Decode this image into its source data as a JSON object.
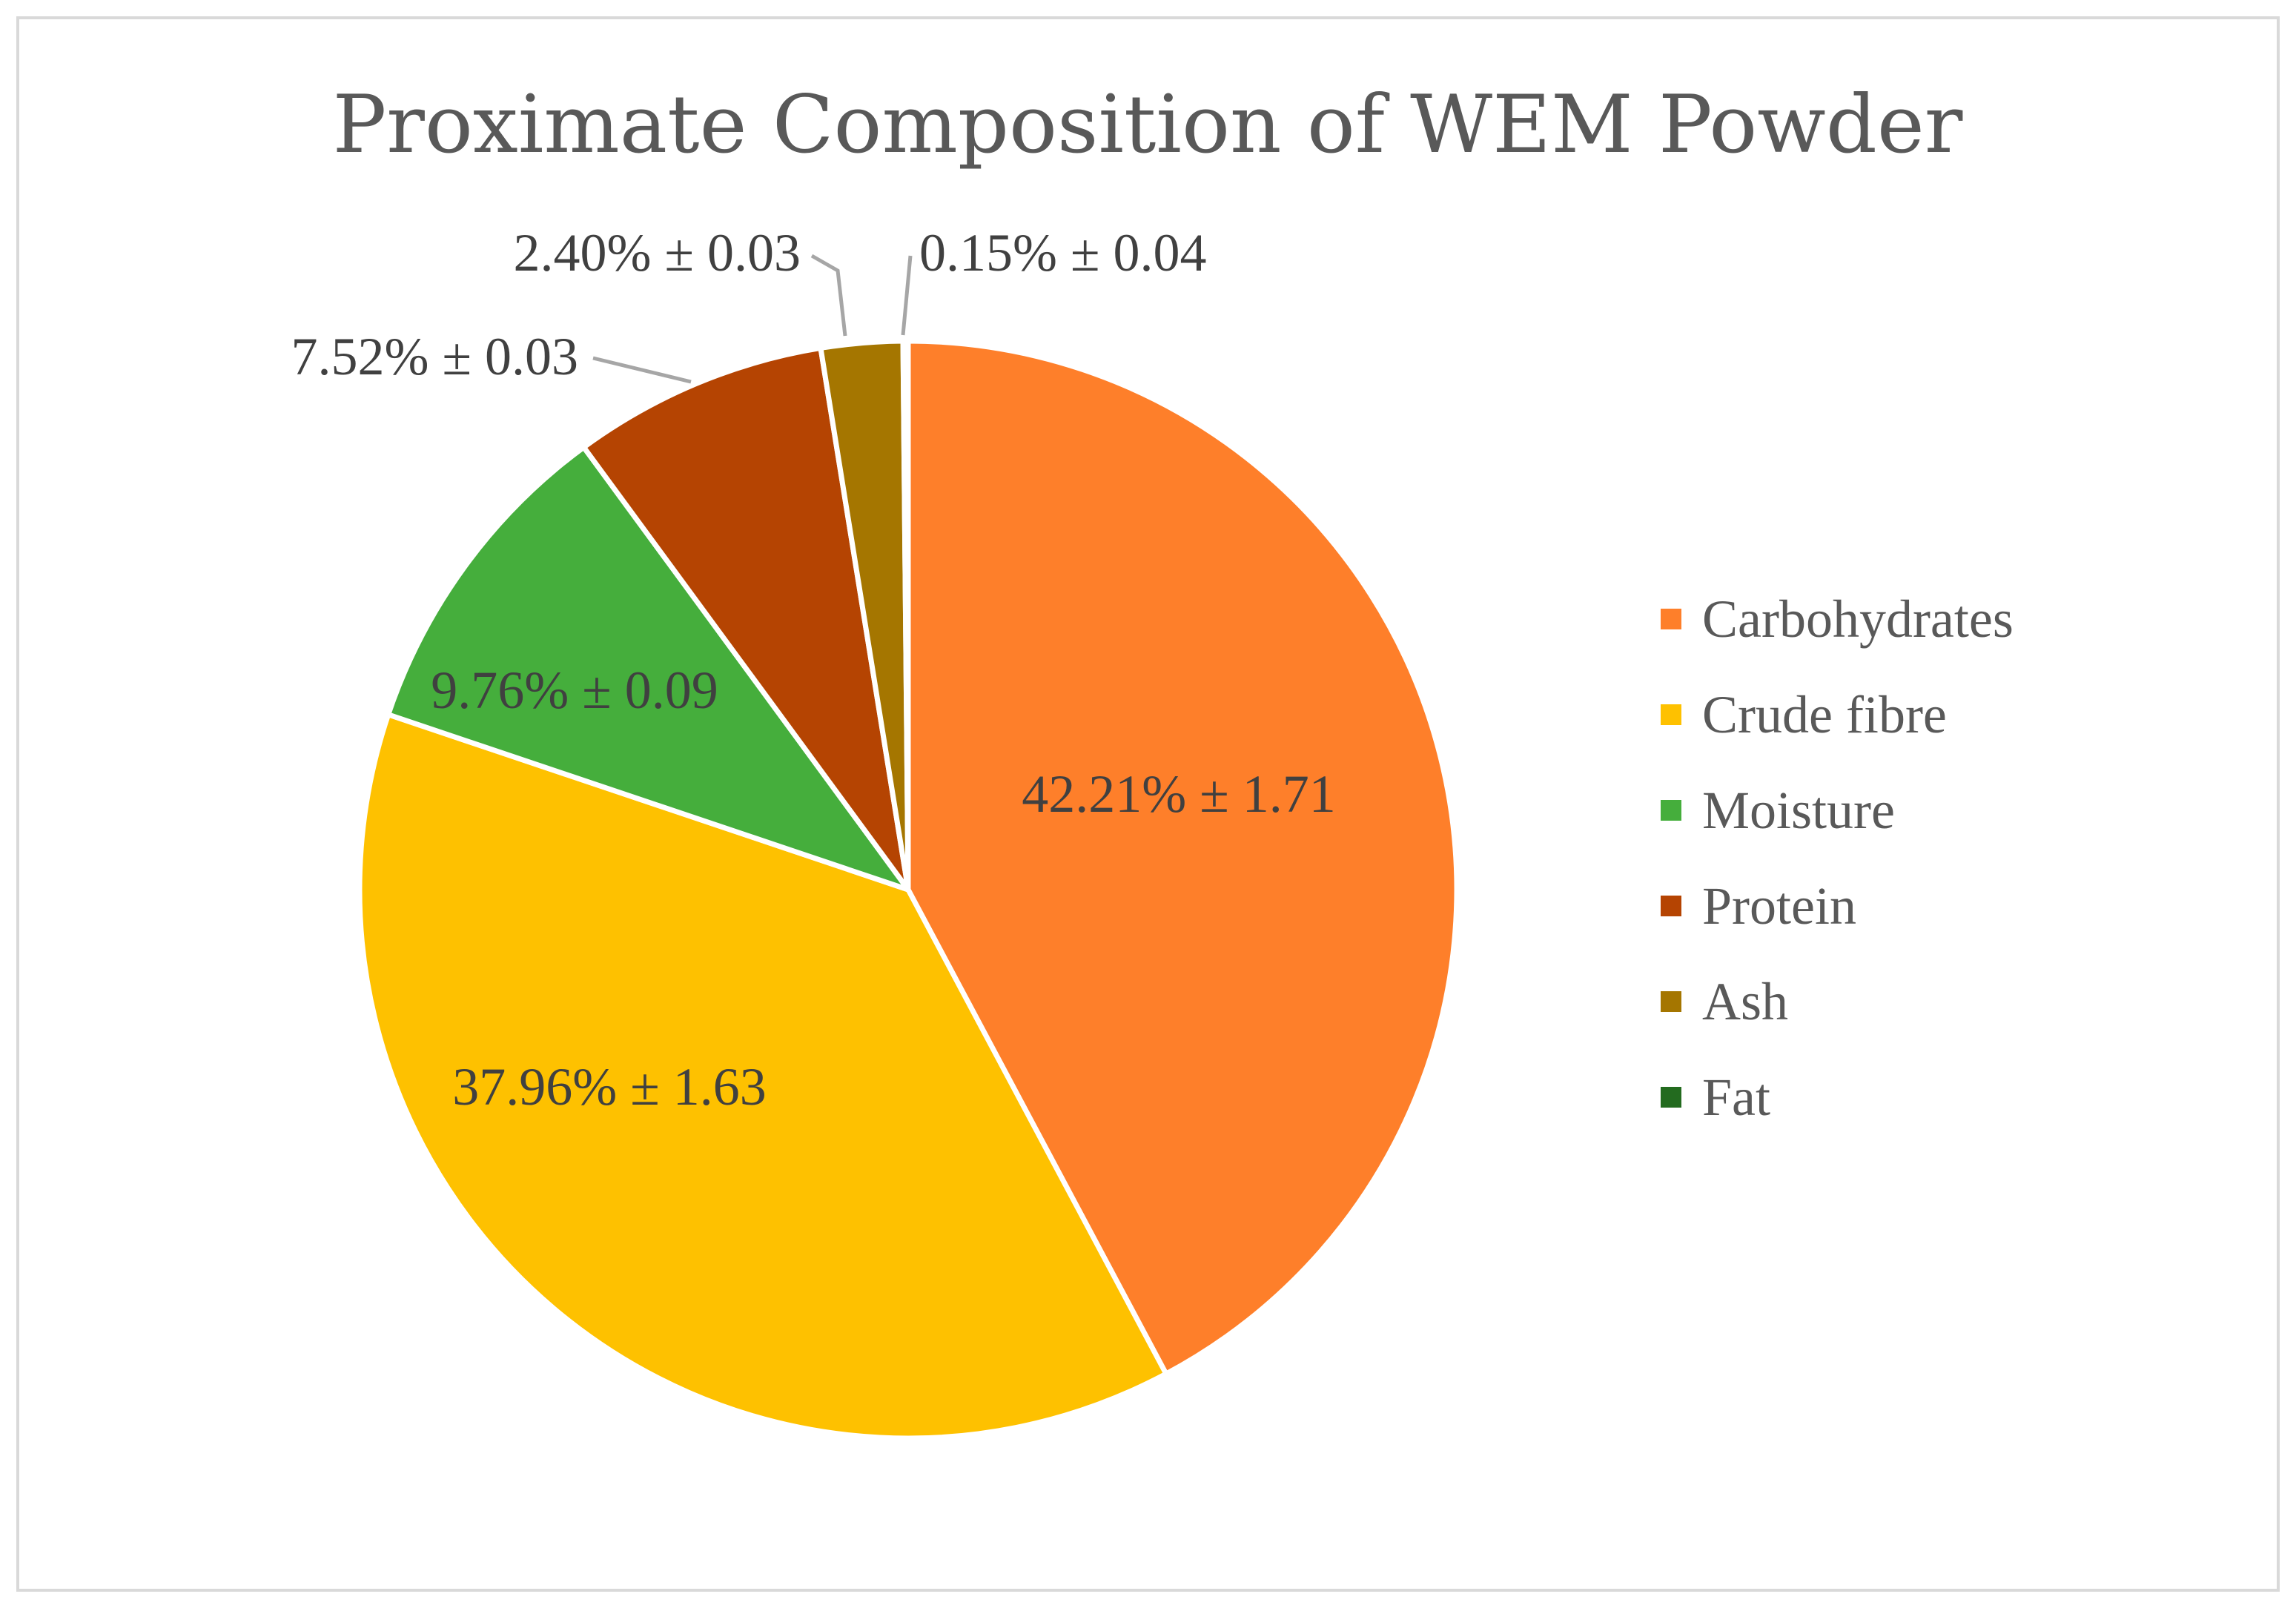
{
  "chart_data": {
    "type": "pie",
    "title": "Proximate Composition of WEM Powder",
    "categories": [
      "Carbohydrates",
      "Crude fibre",
      "Moisture",
      "Protein",
      "Ash",
      "Fat"
    ],
    "values": [
      42.21,
      37.96,
      9.76,
      7.52,
      2.4,
      0.15
    ],
    "errors": [
      1.71,
      1.63,
      0.09,
      0.03,
      0.03,
      0.04
    ],
    "data_labels": [
      "42.21% ± 1.71",
      "37.96% ± 1.63",
      "9.76% ± 0.09",
      "7.52% ± 0.03",
      "2.40% ± 0.03",
      "0.15% ± 0.04"
    ],
    "colors": [
      "#fe7f2a",
      "#fec100",
      "#45ae3c",
      "#b54402",
      "#a57600",
      "#236b1f"
    ],
    "legend_position": "right",
    "start_angle": "12 o'clock",
    "direction": "clockwise"
  }
}
